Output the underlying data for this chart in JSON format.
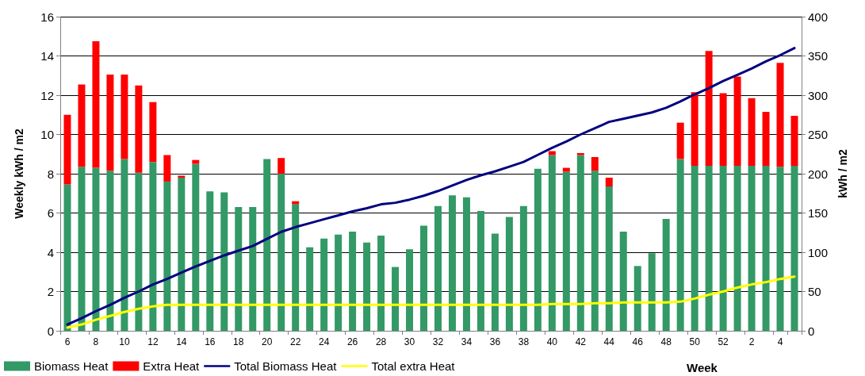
{
  "chart_data": {
    "type": "bar",
    "stacked": true,
    "xlabel": "Week",
    "ylabel": "Weekly kWh / m2",
    "y2label": "kWh / m2",
    "categories": [
      "6",
      null,
      "8",
      null,
      "10",
      null,
      "12",
      null,
      "14",
      null,
      "16",
      null,
      "18",
      null,
      "20",
      null,
      "22",
      null,
      "24",
      null,
      "26",
      null,
      "28",
      null,
      "30",
      null,
      "32",
      null,
      "34",
      null,
      "36",
      null,
      "38",
      null,
      "40",
      null,
      "42",
      null,
      "44",
      null,
      "46",
      null,
      "48",
      null,
      "50",
      null,
      "52",
      null,
      "2",
      null,
      "4",
      null
    ],
    "series": [
      {
        "name": "Biomass Heat",
        "color": "#339966",
        "values": [
          7.45,
          8.35,
          8.3,
          8.15,
          8.75,
          8.05,
          8.6,
          7.6,
          7.8,
          8.5,
          7.1,
          7.05,
          6.3,
          6.3,
          8.75,
          8.0,
          6.45,
          4.25,
          4.7,
          4.9,
          5.05,
          4.5,
          4.85,
          3.25,
          4.15,
          5.35,
          6.35,
          6.9,
          6.8,
          6.1,
          4.95,
          5.8,
          6.35,
          8.25,
          8.95,
          8.1,
          8.95,
          8.15,
          7.35,
          5.05,
          3.3,
          3.95,
          5.7,
          8.75,
          8.4,
          8.4,
          8.4,
          8.4,
          8.4,
          8.4,
          8.35,
          8.4
        ]
      },
      {
        "name": "Extra Heat",
        "color": "#ff0000",
        "values": [
          3.55,
          4.2,
          6.45,
          4.9,
          4.3,
          4.45,
          3.05,
          1.35,
          0.1,
          0.2,
          0,
          0,
          0,
          0,
          0,
          0.8,
          0.15,
          0,
          0,
          0,
          0,
          0,
          0,
          0,
          0,
          0,
          0,
          0,
          0,
          0,
          0,
          0,
          0,
          0,
          0.2,
          0.2,
          0.1,
          0.7,
          0.45,
          0,
          0,
          0,
          0,
          1.85,
          3.75,
          5.85,
          3.7,
          4.55,
          3.45,
          2.75,
          5.3,
          2.55
        ]
      },
      {
        "name": "Total Biomass Heat",
        "type": "line",
        "axis": "y2",
        "color": "#000080",
        "values": [
          8,
          16,
          25,
          33,
          42,
          50,
          59,
          66,
          74,
          82,
          89,
          96,
          102,
          108,
          117,
          126,
          132,
          137,
          142,
          147,
          152,
          156,
          161,
          163,
          167,
          172,
          178,
          185,
          192,
          198,
          203,
          209,
          215,
          224,
          233,
          241,
          250,
          258,
          266,
          270,
          274,
          278,
          284,
          292,
          301,
          309,
          318,
          326,
          334,
          343,
          351,
          360
        ]
      },
      {
        "name": "Total extra Heat",
        "type": "line",
        "axis": "y2",
        "color": "#ffff00",
        "values": [
          4,
          8,
          14,
          19,
          24,
          28,
          31,
          33,
          33,
          33,
          33,
          33,
          33,
          33,
          33,
          33,
          33,
          33,
          33,
          33,
          33,
          33,
          33,
          33,
          33,
          33,
          33,
          33,
          33,
          33,
          33,
          33,
          33,
          33,
          34,
          34,
          34,
          35,
          35,
          36,
          36,
          36,
          36,
          37,
          41,
          46,
          50,
          55,
          59,
          62,
          66,
          69
        ]
      }
    ],
    "ylim": [
      0,
      16
    ],
    "yticks": [
      0,
      2,
      4,
      6,
      8,
      10,
      12,
      14,
      16
    ],
    "y2lim": [
      0,
      400
    ],
    "y2ticks": [
      0,
      50,
      100,
      150,
      200,
      250,
      300,
      350,
      400
    ],
    "grid": "y",
    "legend": "bottom left",
    "marker": "none",
    "line_style": "solid"
  }
}
